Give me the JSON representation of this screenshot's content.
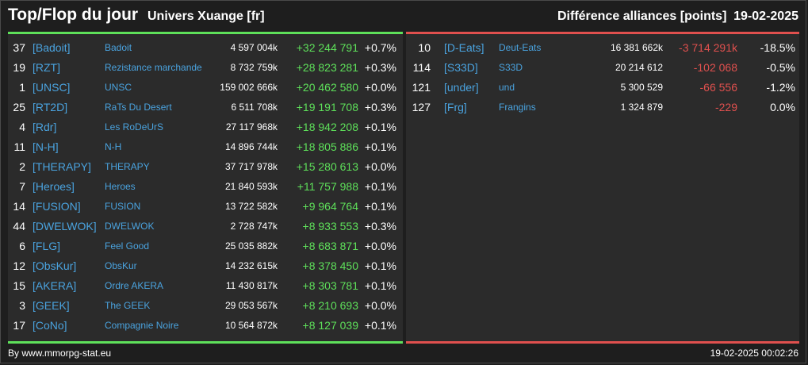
{
  "header": {
    "title": "Top/Flop du jour",
    "universe": "Univers Xuange [fr]",
    "context": "Différence alliances [points]",
    "date": "19-02-2025"
  },
  "top": [
    {
      "rank": "37",
      "tag": "[Badoit]",
      "name": "Badoit",
      "points": "4 597 004k",
      "diff": "+32 244 791",
      "pct": "+0.7%"
    },
    {
      "rank": "19",
      "tag": "[RZT]",
      "name": "Rezistance marchande",
      "points": "8 732 759k",
      "diff": "+28 823 281",
      "pct": "+0.3%"
    },
    {
      "rank": "1",
      "tag": "[UNSC]",
      "name": "UNSC",
      "points": "159 002 666k",
      "diff": "+20 462 580",
      "pct": "+0.0%"
    },
    {
      "rank": "25",
      "tag": "[RT2D]",
      "name": "RaTs Du Desert",
      "points": "6 511 708k",
      "diff": "+19 191 708",
      "pct": "+0.3%"
    },
    {
      "rank": "4",
      "tag": "[Rdr]",
      "name": "Les RoDeUrS",
      "points": "27 117 968k",
      "diff": "+18 942 208",
      "pct": "+0.1%"
    },
    {
      "rank": "11",
      "tag": "[N-H]",
      "name": "N-H",
      "points": "14 896 744k",
      "diff": "+18 805 886",
      "pct": "+0.1%"
    },
    {
      "rank": "2",
      "tag": "[THERAPY]",
      "name": "THERAPY",
      "points": "37 717 978k",
      "diff": "+15 280 613",
      "pct": "+0.0%"
    },
    {
      "rank": "7",
      "tag": "[Heroes]",
      "name": "Heroes",
      "points": "21 840 593k",
      "diff": "+11 757 988",
      "pct": "+0.1%"
    },
    {
      "rank": "14",
      "tag": "[FUSION]",
      "name": "FUSION",
      "points": "13 722 582k",
      "diff": "+9 964 764",
      "pct": "+0.1%"
    },
    {
      "rank": "44",
      "tag": "[DWELWOK]",
      "name": "DWELWOK",
      "points": "2 728 747k",
      "diff": "+8 933 553",
      "pct": "+0.3%"
    },
    {
      "rank": "6",
      "tag": "[FLG]",
      "name": "Feel Good",
      "points": "25 035 882k",
      "diff": "+8 683 871",
      "pct": "+0.0%"
    },
    {
      "rank": "12",
      "tag": "[ObsKur]",
      "name": "ObsKur",
      "points": "14 232 615k",
      "diff": "+8 378 450",
      "pct": "+0.1%"
    },
    {
      "rank": "15",
      "tag": "[AKERA]",
      "name": "Ordre AKERA",
      "points": "11 430 817k",
      "diff": "+8 303 781",
      "pct": "+0.1%"
    },
    {
      "rank": "3",
      "tag": "[GEEK]",
      "name": "The GEEK",
      "points": "29 053 567k",
      "diff": "+8 210 693",
      "pct": "+0.0%"
    },
    {
      "rank": "17",
      "tag": "[CoNo]",
      "name": "Compagnie Noire",
      "points": "10 564 872k",
      "diff": "+8 127 039",
      "pct": "+0.1%"
    }
  ],
  "flop": [
    {
      "rank": "10",
      "tag": "[D-Eats]",
      "name": "Deut-Eats",
      "points": "16 381 662k",
      "diff": "-3 714 291k",
      "pct": "-18.5%"
    },
    {
      "rank": "114",
      "tag": "[S33D]",
      "name": "S33D",
      "points": "20 214 612",
      "diff": "-102 068",
      "pct": "-0.5%"
    },
    {
      "rank": "121",
      "tag": "[under]",
      "name": "und",
      "points": "5 300 529",
      "diff": "-66 556",
      "pct": "-1.2%"
    },
    {
      "rank": "127",
      "tag": "[Frg]",
      "name": "Frangins",
      "points": "1 324 879",
      "diff": "-229",
      "pct": "0.0%"
    }
  ],
  "footer": {
    "credit": "By www.mmorpg-stat.eu",
    "timestamp": "19-02-2025 00:02:26"
  },
  "colors": {
    "positive": "#5ee05a",
    "negative": "#e0504e",
    "link": "#4aa3df",
    "panel": "#2b2b2b",
    "background": "#1e1e1e"
  }
}
